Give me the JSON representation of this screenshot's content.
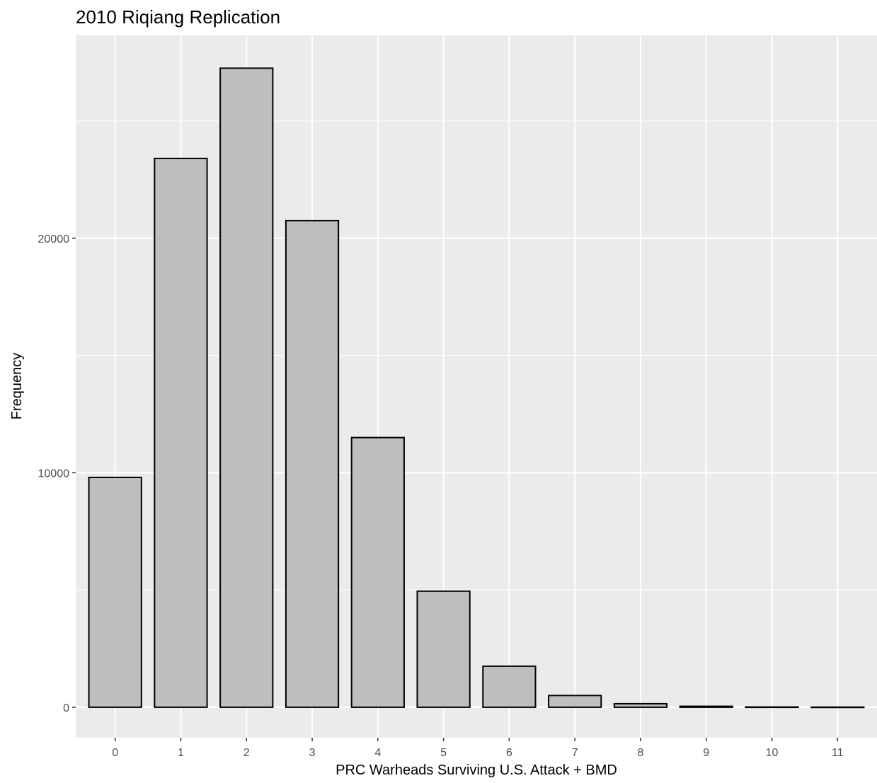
{
  "chart_data": {
    "type": "bar",
    "title": "2010 Riqiang Replication",
    "xlabel": "PRC Warheads Surviving U.S. Attack + BMD",
    "ylabel": "Frequency",
    "categories": [
      "0",
      "1",
      "2",
      "3",
      "4",
      "5",
      "6",
      "7",
      "8",
      "9",
      "10",
      "11"
    ],
    "values": [
      9800,
      23400,
      27250,
      20750,
      11500,
      4950,
      1750,
      500,
      150,
      40,
      10,
      5
    ],
    "yticks": [
      0,
      10000,
      20000
    ],
    "ytick_labels": [
      "0",
      "10000",
      "20000"
    ],
    "ylim": [
      -1300,
      28650
    ],
    "grid": true,
    "legend": "none",
    "colors": {
      "panel_background": "#ebebeb",
      "grid": "#ffffff",
      "bar_fill": "#bebebe",
      "bar_outline": "#000000",
      "tick_label": "#4d4d4d",
      "tick_mark": "#333333"
    }
  }
}
